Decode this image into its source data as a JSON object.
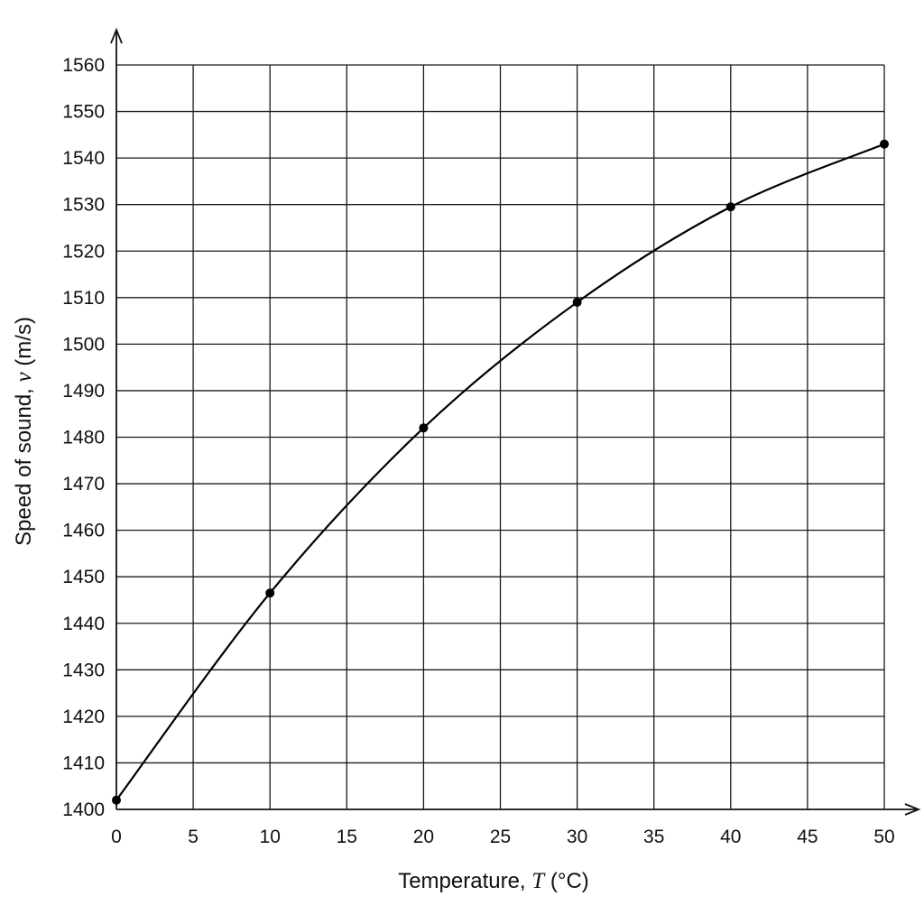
{
  "chart_data": {
    "type": "line",
    "xlabel": {
      "prefix": "Temperature, ",
      "symbol": "T",
      "suffix": " (°C)"
    },
    "ylabel": {
      "prefix": "Speed of sound, ",
      "symbol": "v",
      "suffix": " (m/s)"
    },
    "xlim": [
      0,
      50
    ],
    "ylim": [
      1400,
      1560
    ],
    "x_ticks": [
      0,
      5,
      10,
      15,
      20,
      25,
      30,
      35,
      40,
      45,
      50
    ],
    "y_ticks": [
      1400,
      1410,
      1420,
      1430,
      1440,
      1450,
      1460,
      1470,
      1480,
      1490,
      1500,
      1510,
      1520,
      1530,
      1540,
      1550,
      1560
    ],
    "grid": true,
    "series": [
      {
        "x": [
          0,
          10,
          20,
          30,
          40,
          50
        ],
        "y": [
          1402,
          1446.5,
          1482,
          1509,
          1529.5,
          1543
        ],
        "markers": true,
        "smooth": true,
        "color": "#000000"
      }
    ]
  }
}
